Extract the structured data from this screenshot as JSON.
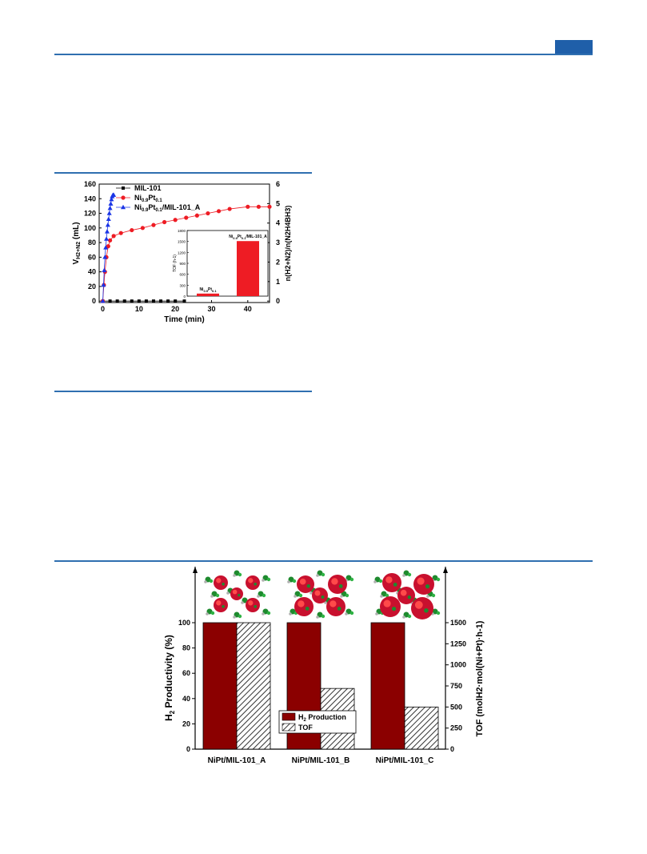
{
  "page": {
    "accent_color": "#2f6fb0",
    "tab_color": "#1f5fa9"
  },
  "chart_data": [
    {
      "type": "scatter",
      "title": "",
      "xlabel": "Time (min)",
      "ylabel_main": "V",
      "ylabel_sub": "H2+N2",
      "ylabel_unit": " (mL)",
      "y2label": "n(H2+N2)/n(N2H4BH3)",
      "xlim": [
        -1,
        46
      ],
      "ylim": [
        -2,
        160
      ],
      "y2lim": [
        0,
        6
      ],
      "xticks": [
        "0",
        "10",
        "20",
        "30",
        "40"
      ],
      "xtick_values": [
        0,
        10,
        20,
        30,
        40
      ],
      "yticks": [
        "0",
        "20",
        "40",
        "60",
        "80",
        "100",
        "120",
        "140",
        "160"
      ],
      "ytick_values": [
        0,
        20,
        40,
        60,
        80,
        100,
        120,
        140,
        160
      ],
      "y2ticks": [
        "0",
        "1",
        "2",
        "3",
        "4",
        "5",
        "6"
      ],
      "y2tick_values": [
        0,
        1,
        2,
        3,
        4,
        5,
        6
      ],
      "legend_placement": "top-left",
      "series": [
        {
          "name": "MIL-101",
          "name_parts": [
            "MIL-101",
            "",
            "",
            "",
            ""
          ],
          "color": "#000000",
          "marker": "square",
          "x": [
            0,
            2,
            4,
            6,
            8,
            10,
            12,
            14,
            16,
            18,
            20,
            22.5
          ],
          "y": [
            0,
            0,
            0,
            0,
            0,
            0,
            0,
            0,
            0,
            0,
            0,
            0
          ]
        },
        {
          "name": "Ni0.9Pt0.1",
          "name_parts": [
            "Ni",
            "0.9",
            "Pt",
            "0.1",
            ""
          ],
          "color": "#ee1c24",
          "marker": "circle",
          "x": [
            0,
            0.3,
            0.6,
            1,
            1.5,
            2,
            3,
            5,
            8,
            11,
            14,
            17,
            20,
            23,
            26,
            29,
            32,
            35,
            40,
            43,
            46
          ],
          "y": [
            0,
            22,
            40,
            60,
            75,
            83,
            89,
            93,
            97,
            100,
            104,
            108,
            111,
            114,
            117,
            120,
            123,
            126,
            129,
            129,
            129
          ]
        },
        {
          "name": "Ni0.9Pt0.1/MIL-101_A",
          "name_parts": [
            "Ni",
            "0.9",
            "Pt",
            "0.1",
            "/MIL-101_A"
          ],
          "color": "#1a35e6",
          "marker": "triangle",
          "x": [
            0,
            0.2,
            0.4,
            0.6,
            0.8,
            1.0,
            1.2,
            1.4,
            1.6,
            1.8,
            2.0,
            2.2,
            2.4,
            2.6,
            2.8,
            3.0
          ],
          "y": [
            0,
            22,
            42,
            60,
            73,
            85,
            95,
            104,
            112,
            120,
            127,
            133,
            139,
            143,
            145,
            145
          ]
        }
      ],
      "inset": {
        "type": "bar",
        "ylabel": "TOF (h-1)",
        "ylim": [
          0,
          1800
        ],
        "yticks": [
          "0",
          "300",
          "600",
          "900",
          "1200",
          "1500",
          "1800"
        ],
        "ytick_values": [
          0,
          300,
          600,
          900,
          1200,
          1500,
          1800
        ],
        "categories": [
          "Ni0.9Pt0.1",
          "Ni0.9Pt0.1/MIL-101_A"
        ],
        "category_parts": [
          [
            "Ni",
            "0.9",
            "Pt",
            "0.1",
            ""
          ],
          [
            "Ni",
            "0.9",
            "Pt",
            "0.1",
            "/MIL-101_A"
          ]
        ],
        "values": [
          70,
          1510
        ],
        "color": "#ee1c24"
      }
    },
    {
      "type": "bar",
      "title": "",
      "ylabel": "H2 Productivity (%)",
      "ylabel_parts": [
        "H",
        "2",
        " Productivity (%)"
      ],
      "y2label": "TOF (molH2·mol(Ni+Pt)·h-1)",
      "ylim": [
        0,
        120
      ],
      "y2lim": [
        0,
        1800
      ],
      "yticks": [
        "0",
        "20",
        "40",
        "60",
        "80",
        "100"
      ],
      "ytick_values": [
        0,
        20,
        40,
        60,
        80,
        100
      ],
      "y2ticks": [
        "0",
        "250",
        "500",
        "750",
        "1000",
        "1250",
        "1500"
      ],
      "y2tick_values": [
        0,
        250,
        500,
        750,
        1000,
        1250,
        1500
      ],
      "categories": [
        "NiPt/MIL-101_A",
        "NiPt/MIL-101_B",
        "NiPt/MIL-101_C"
      ],
      "legend_placement": "bottom-center",
      "series": [
        {
          "name": "H2 Production",
          "name_parts": [
            "H",
            "2",
            " Production"
          ],
          "color": "#8b0000",
          "pattern": "solid",
          "axis": "left",
          "values": [
            100,
            100,
            100
          ]
        },
        {
          "name": "TOF",
          "name_parts": [
            "TOF",
            "",
            ""
          ],
          "color": "#333333",
          "pattern": "hatch",
          "axis": "right",
          "values": [
            1500,
            720,
            500
          ]
        }
      ]
    }
  ]
}
